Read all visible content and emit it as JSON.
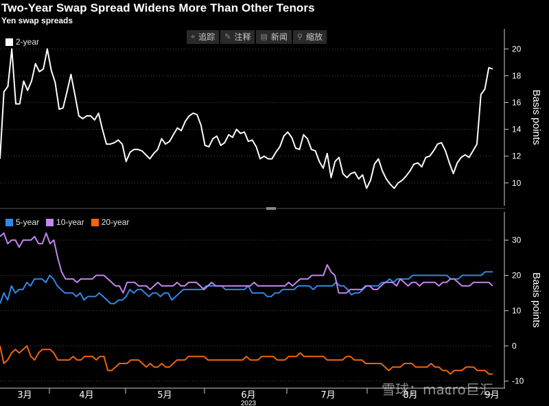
{
  "header": {
    "title": "Two-Year Swap Spread Widens More Than Other Tenors",
    "subtitle": "Yen swap spreads"
  },
  "toolbar": [
    {
      "label": "追踪",
      "icon": "crosshair-icon",
      "glyph": "⌖"
    },
    {
      "label": "注释",
      "icon": "pencil-icon",
      "glyph": "✎"
    },
    {
      "label": "新闻",
      "icon": "news-icon",
      "glyph": "▤"
    },
    {
      "label": "缩放",
      "icon": "zoom-icon",
      "glyph": "⚲"
    }
  ],
  "watermark": "雪球：macro巨汇",
  "colors": {
    "y2": "#ffffff",
    "y5": "#2f8ae8",
    "y10": "#c586ee",
    "y20": "#f0650e"
  },
  "chart_data": [
    {
      "type": "line",
      "x_labels": [
        "3月",
        "4月",
        "5月",
        "6月",
        "7月",
        "8月",
        "9月"
      ],
      "x_year": "2023",
      "ylabel": "Basis points",
      "ylim": [
        8.3,
        21.5
      ],
      "yticks": [
        10,
        12,
        14,
        16,
        18,
        20
      ],
      "legend": "top-left",
      "series": [
        {
          "name": "2-year",
          "color": "#ffffff",
          "values": [
            11.8,
            16.8,
            17.2,
            20.0,
            15.9,
            15.9,
            17.6,
            16.9,
            17.6,
            18.9,
            18.3,
            18.5,
            20.0,
            18.4,
            17.5,
            15.5,
            15.6,
            16.8,
            18.1,
            16.6,
            15.0,
            14.8,
            15.0,
            15.0,
            14.7,
            15.2,
            14.0,
            12.9,
            12.9,
            13.0,
            13.2,
            12.9,
            11.6,
            12.3,
            12.5,
            12.5,
            12.4,
            12.1,
            11.8,
            12.2,
            12.5,
            13.3,
            12.9,
            13.1,
            13.6,
            14.1,
            13.9,
            14.6,
            15.0,
            15.2,
            15.1,
            14.3,
            12.8,
            12.7,
            13.3,
            13.5,
            12.8,
            13.0,
            13.6,
            13.4,
            14.0,
            13.7,
            13.8,
            13.1,
            13.2,
            12.7,
            11.8,
            12.0,
            11.8,
            11.8,
            12.3,
            12.7,
            13.5,
            13.8,
            13.4,
            12.6,
            12.5,
            13.6,
            13.3,
            12.5,
            12.4,
            11.6,
            11.1,
            12.2,
            10.4,
            11.6,
            11.9,
            10.7,
            10.4,
            10.7,
            10.8,
            10.3,
            10.6,
            9.6,
            10.2,
            11.4,
            11.8,
            10.9,
            10.3,
            9.9,
            9.6,
            10.0,
            10.2,
            10.5,
            10.9,
            11.4,
            11.5,
            11.2,
            11.9,
            12.0,
            12.4,
            12.9,
            13.0,
            12.4,
            11.5,
            10.7,
            11.5,
            11.9,
            12.1,
            11.9,
            12.4,
            12.9,
            16.6,
            17.0,
            18.6,
            18.5
          ]
        }
      ]
    },
    {
      "type": "line",
      "x_labels": [
        "3月",
        "4月",
        "5月",
        "6月",
        "7月",
        "8月",
        "9月"
      ],
      "x_year": "2023",
      "ylabel": "Basis points",
      "ylim": [
        -12,
        38
      ],
      "yticks": [
        -10,
        0,
        10,
        20,
        30
      ],
      "legend": "top-left",
      "series": [
        {
          "name": "5-year",
          "color": "#2f8ae8",
          "values": [
            12,
            15,
            13,
            17,
            15,
            16,
            16,
            18,
            17,
            19,
            19,
            19,
            18,
            20,
            19,
            17,
            16,
            15,
            15,
            15,
            14,
            15,
            13,
            14,
            14,
            14,
            15,
            14,
            13,
            12,
            12,
            13,
            13,
            14,
            16,
            15,
            16,
            16,
            15,
            14,
            15,
            15,
            14,
            15,
            15,
            13,
            14,
            15,
            16,
            16,
            16,
            16,
            16,
            16,
            17,
            17,
            17,
            17,
            17,
            16,
            16,
            16,
            16,
            16,
            16,
            17,
            15,
            15,
            15,
            15,
            14,
            14,
            15,
            15,
            16,
            16,
            16,
            16,
            17,
            17,
            17,
            17,
            16,
            17,
            17,
            17,
            17,
            17,
            18,
            17,
            17,
            16,
            14.5,
            15,
            15,
            16,
            17,
            17,
            17,
            17,
            18,
            18,
            19,
            18,
            19,
            19,
            19,
            19,
            20,
            20,
            20,
            20,
            20,
            20,
            20,
            20,
            20,
            20,
            19,
            19,
            19,
            20,
            20,
            20,
            20,
            20,
            20,
            21,
            21,
            21
          ]
        },
        {
          "name": "10-year",
          "color": "#c586ee",
          "values": [
            31,
            32,
            29,
            30,
            30,
            28,
            30,
            30,
            30,
            31,
            29,
            29,
            32,
            29,
            30,
            25,
            21,
            19,
            19,
            19,
            18,
            19,
            19,
            19,
            19,
            20,
            20,
            20,
            19,
            18,
            17,
            17,
            15,
            18,
            18,
            18,
            17,
            17,
            17,
            16,
            17,
            18,
            17,
            17,
            17,
            17,
            18,
            17,
            17,
            18,
            18,
            18,
            17,
            16,
            17,
            18,
            17,
            17,
            17,
            17,
            17,
            17,
            17,
            17,
            17,
            17,
            18,
            17,
            17,
            17,
            17,
            17,
            17,
            17,
            17,
            18,
            17,
            18,
            19,
            19,
            19,
            20,
            20,
            20,
            20,
            23,
            21,
            20,
            15,
            15,
            15,
            16,
            16,
            16,
            16,
            17,
            17,
            16,
            16,
            17,
            18,
            18,
            18,
            17,
            19,
            18,
            17,
            18,
            18,
            17,
            18,
            18,
            18,
            18,
            17,
            18,
            18,
            19,
            19,
            18,
            17,
            17,
            17,
            18,
            18,
            18,
            18,
            18,
            17
          ]
        },
        {
          "name": "20-year",
          "color": "#f0650e",
          "values": [
            0,
            -5,
            -4,
            -2,
            -1,
            -2,
            -1,
            0,
            -3,
            -4,
            -2,
            -1,
            -1,
            -1,
            -2,
            -4,
            -4,
            -4,
            -4,
            -3,
            -4,
            -4,
            -3,
            -3,
            -3,
            -4,
            -3,
            -3,
            -7,
            -7,
            -6,
            -5,
            -5,
            -5,
            -4,
            -4,
            -4,
            -5,
            -6,
            -5,
            -6,
            -6,
            -5,
            -6,
            -6,
            -5,
            -4,
            -4,
            -4,
            -3,
            -3,
            -3,
            -3,
            -3,
            -4,
            -4,
            -4,
            -4,
            -4,
            -4,
            -4,
            -4,
            -4,
            -4,
            -3,
            -4,
            -4,
            -4,
            -3,
            -3,
            -3,
            -3,
            -4,
            -4,
            -4,
            -3,
            -3,
            -3,
            -2,
            -3,
            -3,
            -3,
            -3,
            -3,
            -3,
            -4,
            -4,
            -4,
            -4,
            -4,
            -3,
            -3,
            -4,
            -4,
            -4,
            -5,
            -5,
            -5,
            -5,
            -5,
            -6,
            -7,
            -6,
            -6,
            -6,
            -5,
            -5,
            -5,
            -6,
            -6,
            -6,
            -6,
            -5,
            -6,
            -6,
            -7,
            -7,
            -8,
            -7,
            -7,
            -7,
            -6,
            -6,
            -6,
            -7,
            -7,
            -7,
            -8,
            -8
          ]
        }
      ]
    }
  ]
}
